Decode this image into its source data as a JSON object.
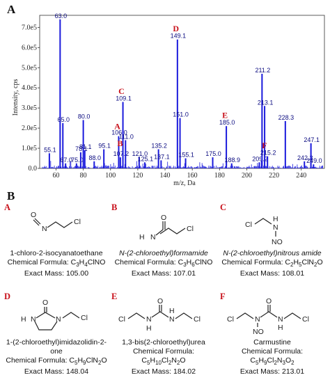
{
  "panel_a_label": "A",
  "panel_b_label": "B",
  "chart_data": {
    "type": "line",
    "xlabel": "m/z, Da",
    "ylabel": "Intensity, cps",
    "xlim": [
      48,
      257
    ],
    "ylim": [
      0,
      760000
    ],
    "x_ticks": [
      60,
      80,
      100,
      120,
      140,
      160,
      180,
      200,
      220,
      240
    ],
    "y_ticks": [
      {
        "v": 0,
        "label": "0.0"
      },
      {
        "v": 100000,
        "label": "1.0e5"
      },
      {
        "v": 200000,
        "label": "2.0e5"
      },
      {
        "v": 300000,
        "label": "3.0e5"
      },
      {
        "v": 400000,
        "label": "4.0e5"
      },
      {
        "v": 500000,
        "label": "5.0e5"
      },
      {
        "v": 600000,
        "label": "6.0e5"
      },
      {
        "v": 700000,
        "label": "7.0e5"
      }
    ],
    "peaks": [
      {
        "x": 55.1,
        "y": 75000,
        "label": "55.1"
      },
      {
        "x": 63.0,
        "y": 740000,
        "label": "63.0"
      },
      {
        "x": 65.0,
        "y": 225000,
        "label": "65.0"
      },
      {
        "x": 67.0,
        "y": 25000,
        "label": "67.0"
      },
      {
        "x": 75.0,
        "y": 25000,
        "label": "75.0"
      },
      {
        "x": 78.1,
        "y": 80000,
        "label": "78.1"
      },
      {
        "x": 80.0,
        "y": 240000,
        "label": "80.0"
      },
      {
        "x": 81.1,
        "y": 90000,
        "label": "81.1"
      },
      {
        "x": 88.0,
        "y": 35000,
        "label": "88.0"
      },
      {
        "x": 95.1,
        "y": 95000,
        "label": "95.1"
      },
      {
        "x": 106.0,
        "y": 160000,
        "label": "106.0"
      },
      {
        "x": 107.2,
        "y": 55000,
        "label": "107.2"
      },
      {
        "x": 109.1,
        "y": 330000,
        "label": "109.1"
      },
      {
        "x": 111.0,
        "y": 140000,
        "label": "111.0"
      },
      {
        "x": 121.0,
        "y": 55000,
        "label": "121.0"
      },
      {
        "x": 125.1,
        "y": 30000,
        "label": "125.1"
      },
      {
        "x": 135.2,
        "y": 95000,
        "label": "135.2"
      },
      {
        "x": 137.1,
        "y": 40000,
        "label": "137.1"
      },
      {
        "x": 149.1,
        "y": 640000,
        "label": "149.1"
      },
      {
        "x": 151.0,
        "y": 250000,
        "label": "151.0"
      },
      {
        "x": 155.1,
        "y": 50000,
        "label": "155.1"
      },
      {
        "x": 175.0,
        "y": 55000,
        "label": "175.0"
      },
      {
        "x": 185.0,
        "y": 210000,
        "label": "185.0"
      },
      {
        "x": 188.9,
        "y": 25000,
        "label": "188.9"
      },
      {
        "x": 209.2,
        "y": 30000,
        "label": "209.2"
      },
      {
        "x": 211.2,
        "y": 470000,
        "label": "211.2"
      },
      {
        "x": 213.1,
        "y": 310000,
        "label": "213.1"
      },
      {
        "x": 215.2,
        "y": 60000,
        "label": "215.2"
      },
      {
        "x": 228.3,
        "y": 235000,
        "label": "228.3"
      },
      {
        "x": 242.3,
        "y": 35000,
        "label": "242.3"
      },
      {
        "x": 247.1,
        "y": 125000,
        "label": "247.1"
      },
      {
        "x": 249.0,
        "y": 20000,
        "label": "249.0"
      }
    ],
    "annotations": [
      {
        "letter": "A",
        "x": 105.0,
        "y": 195000
      },
      {
        "letter": "B",
        "x": 107.0,
        "y": 110000
      },
      {
        "letter": "C",
        "x": 108.0,
        "y": 370000
      },
      {
        "letter": "D",
        "x": 148.0,
        "y": 680000
      },
      {
        "letter": "E",
        "x": 184.0,
        "y": 250000
      },
      {
        "letter": "F",
        "x": 213.0,
        "y": 100000
      }
    ]
  },
  "compounds": [
    {
      "letter": "A",
      "name": "1-chloro-2-isocyanatoethane",
      "formula_label": "Chemical Formula: ",
      "formula": "C3H4ClNO",
      "mass": "Exact Mass: 105.00"
    },
    {
      "letter": "B",
      "name": "N-(2-chloroethyl)formamide",
      "formula_label": "Chemical Formula: ",
      "formula": "C3H6ClNO",
      "mass": "Exact Mass: 107.01"
    },
    {
      "letter": "C",
      "name": "N-(2-chloroethyl)nitrous amide",
      "formula_label": "Chemical Formula: ",
      "formula": "C2H5ClN2O",
      "mass": "Exact Mass: 108.01"
    },
    {
      "letter": "D",
      "name": "1-(2-chloroethyl)imidazolidin-2-one",
      "formula_label": "Chemical Formula: ",
      "formula": "C5H9ClN2O",
      "mass": "Exact Mass: 148.04"
    },
    {
      "letter": "E",
      "name": "1,3-bis(2-chloroethyl)urea",
      "formula_label": "Chemical Formula: ",
      "formula": "C5H10Cl2N2O",
      "mass": "Exact Mass: 184.02"
    },
    {
      "letter": "F",
      "name": "Carmustine",
      "formula_label": "Chemical Formula: ",
      "formula": "C5H9Cl2N3O2",
      "mass": "Exact Mass: 213.01"
    }
  ],
  "atoms": {
    "O": "O",
    "N": "N",
    "H": "H",
    "Cl": "Cl",
    "NO": "NO"
  }
}
